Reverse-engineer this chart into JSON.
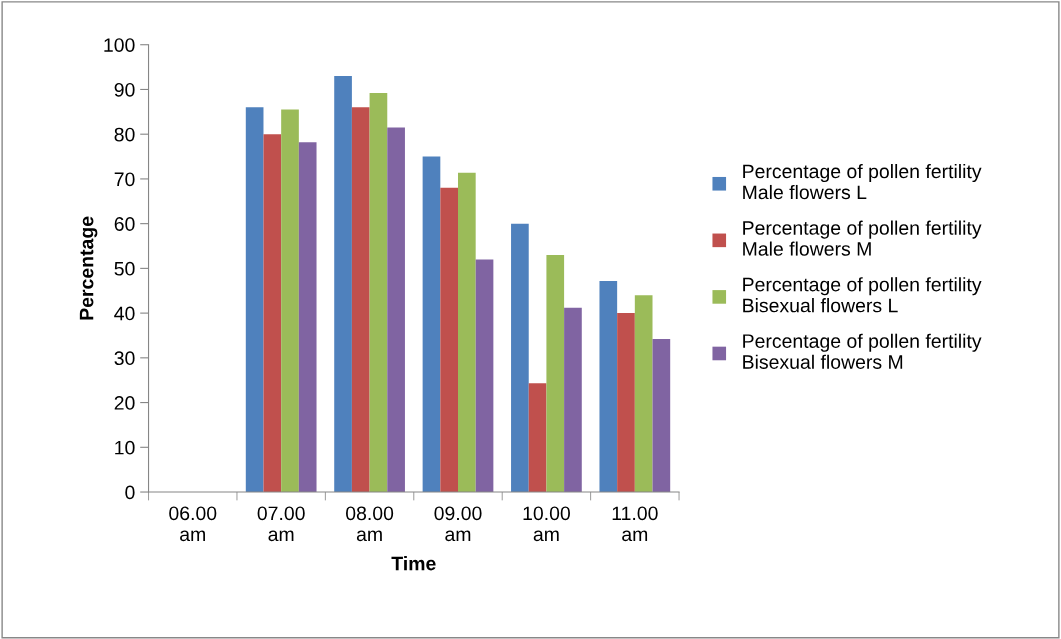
{
  "chart_data": {
    "type": "bar",
    "xlabel": "Time",
    "ylabel": "Percentage",
    "categories": [
      "06.00\nam",
      "07.00\nam",
      "08.00\nam",
      "09.00\nam",
      "10.00\nam",
      "11.00\nam"
    ],
    "series": [
      {
        "name": "Percentage of pollen fertility\nMale flowers L",
        "color": "#4f81bd",
        "values": [
          null,
          86,
          93,
          75,
          60,
          47.2
        ]
      },
      {
        "name": "Percentage of pollen fertility\nMale flowers M",
        "color": "#c0504d",
        "values": [
          null,
          80,
          86,
          68,
          24.3,
          40
        ]
      },
      {
        "name": "Percentage of pollen fertility\nBisexual flowers L",
        "color": "#9bbb59",
        "values": [
          null,
          85.5,
          89.2,
          71.4,
          53,
          44
        ]
      },
      {
        "name": "Percentage of pollen fertility\nBisexual flowers M",
        "color": "#8064a2",
        "values": [
          null,
          78.2,
          81.5,
          52,
          41.2,
          34.2
        ]
      }
    ],
    "ylim": [
      0,
      100
    ],
    "yticks": [
      0,
      10,
      20,
      30,
      40,
      50,
      60,
      70,
      80,
      90,
      100
    ],
    "grid": false,
    "legend": "right"
  }
}
